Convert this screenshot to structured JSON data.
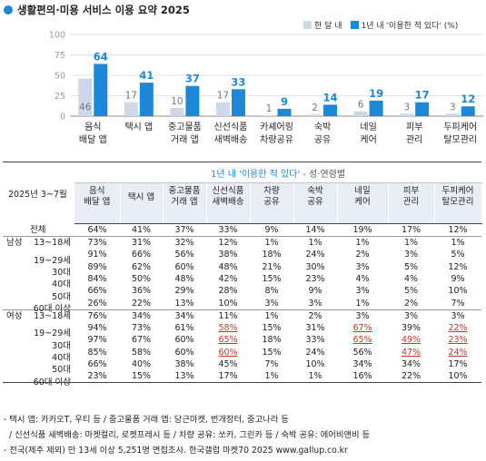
{
  "title": "생활편의·미용 서비스 이용 요약 2025",
  "legend": {
    "series1": "한 달 내",
    "series2": "1년 내 '이용한 적 있다' (%)",
    "color1": "#cdd9e8",
    "color2": "#1c88d8"
  },
  "chart_data": {
    "type": "bar",
    "categories": [
      [
        "음식",
        "배달 앱"
      ],
      [
        "택시 앱"
      ],
      [
        "중고물품",
        "거래 앱"
      ],
      [
        "신선식품",
        "새벽배송"
      ],
      [
        "카셰어링",
        "차량공유"
      ],
      [
        "숙박",
        "공유"
      ],
      [
        "네일",
        "케어"
      ],
      [
        "피부",
        "관리"
      ],
      [
        "두피케어",
        "탈모관리"
      ]
    ],
    "series": [
      {
        "name": "한 달 내",
        "values": [
          46,
          17,
          10,
          17,
          1,
          2,
          6,
          3,
          3
        ]
      },
      {
        "name": "1년 내 '이용한 적 있다' (%)",
        "values": [
          64,
          41,
          37,
          33,
          9,
          14,
          19,
          17,
          12
        ]
      }
    ],
    "yticks": [
      0,
      25,
      50,
      75,
      100
    ],
    "ylim": [
      0,
      100
    ]
  },
  "table": {
    "corner": "2025년 3~7월",
    "subtitle_main": "1년 내 '이용한 적 있다'",
    "subtitle_tail": " - 성·연령별",
    "columns": [
      [
        "음식",
        "배달 앱"
      ],
      [
        "택시 앱"
      ],
      [
        "중고물품",
        "거래 앱"
      ],
      [
        "신선식품",
        "새벽배송"
      ],
      [
        "차량",
        "공유"
      ],
      [
        "숙박",
        "공유"
      ],
      [
        "네일",
        "케어"
      ],
      [
        "피부",
        "관리"
      ],
      [
        "두피케어",
        "탈모관리"
      ]
    ],
    "rows": [
      {
        "group": "",
        "label": "전체",
        "values": [
          "64%",
          "41%",
          "37%",
          "33%",
          "9%",
          "14%",
          "19%",
          "17%",
          "12%"
        ],
        "hl": []
      },
      {
        "group": "남성",
        "label": "13~18세",
        "values": [
          "73%",
          "31%",
          "32%",
          "12%",
          "1%",
          "1%",
          "1%",
          "1%",
          "1%"
        ],
        "hl": []
      },
      {
        "group": "",
        "label": "19~29세",
        "values": [
          "91%",
          "66%",
          "56%",
          "38%",
          "18%",
          "24%",
          "2%",
          "3%",
          "5%"
        ],
        "hl": []
      },
      {
        "group": "",
        "label": "30대",
        "values": [
          "89%",
          "62%",
          "60%",
          "48%",
          "21%",
          "30%",
          "3%",
          "5%",
          "12%"
        ],
        "hl": []
      },
      {
        "group": "",
        "label": "40대",
        "values": [
          "84%",
          "50%",
          "48%",
          "42%",
          "15%",
          "23%",
          "4%",
          "4%",
          "9%"
        ],
        "hl": []
      },
      {
        "group": "",
        "label": "50대",
        "values": [
          "66%",
          "36%",
          "29%",
          "28%",
          "8%",
          "9%",
          "3%",
          "5%",
          "10%"
        ],
        "hl": []
      },
      {
        "group": "",
        "label": "60대 이상",
        "values": [
          "26%",
          "22%",
          "13%",
          "10%",
          "3%",
          "3%",
          "1%",
          "2%",
          "7%"
        ],
        "hl": []
      },
      {
        "group": "여성",
        "label": "13~18세",
        "values": [
          "76%",
          "34%",
          "34%",
          "11%",
          "1%",
          "2%",
          "3%",
          "3%",
          "3%"
        ],
        "hl": []
      },
      {
        "group": "",
        "label": "19~29세",
        "values": [
          "94%",
          "73%",
          "61%",
          "58%",
          "15%",
          "31%",
          "67%",
          "39%",
          "22%"
        ],
        "hl": [
          3,
          6,
          8
        ]
      },
      {
        "group": "",
        "label": "30대",
        "values": [
          "97%",
          "67%",
          "60%",
          "65%",
          "18%",
          "33%",
          "65%",
          "49%",
          "23%"
        ],
        "hl": [
          3,
          6,
          7,
          8
        ]
      },
      {
        "group": "",
        "label": "40대",
        "values": [
          "85%",
          "58%",
          "60%",
          "60%",
          "15%",
          "24%",
          "56%",
          "47%",
          "24%"
        ],
        "hl": [
          3,
          7,
          8
        ]
      },
      {
        "group": "",
        "label": "50대",
        "values": [
          "66%",
          "40%",
          "38%",
          "45%",
          "7%",
          "10%",
          "34%",
          "34%",
          "17%"
        ],
        "hl": []
      },
      {
        "group": "",
        "label": "60대 이상",
        "values": [
          "23%",
          "15%",
          "13%",
          "17%",
          "1%",
          "1%",
          "16%",
          "22%",
          "10%"
        ],
        "hl": []
      }
    ]
  },
  "notes": [
    "- 택시 앱: 카카오T, 우티 등 / 중고물품 거래 앱: 당근마켓, 번개장터, 중고나라 등",
    "  / 신선식품 새벽배송: 마켓컬리, 로켓프레시 등 / 차량 공유: 쏘카, 그린카 등 / 숙박 공유: 에어비앤비 등",
    "- 전국(제주 제외) 만 13세 이상 5,251명 면접조사. 한국갤럽 마켓70 2025 www.gallup.co.kr"
  ]
}
